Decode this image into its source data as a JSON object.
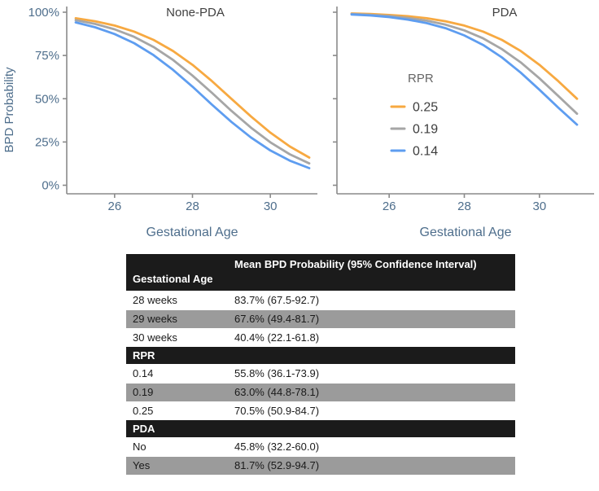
{
  "colors": {
    "series_orange": "#F7A941",
    "series_gray": "#A6A6A6",
    "series_blue": "#5E9DF0",
    "axis_line": "#8a8a8a",
    "axis_text": "#4e6e8c",
    "title_text": "#404040",
    "legend_title_text": "#666666",
    "legend_entry_text": "#3d3d3d",
    "table_header_bg": "#1b1b1b",
    "table_header_text": "#ffffff",
    "table_alt_row_bg": "#9b9b9b",
    "table_text": "#1a1a1a"
  },
  "chart_data": [
    {
      "type": "line",
      "title": "None-PDA",
      "xlabel": "Gestational Age",
      "ylabel": "BPD Probability",
      "xlim": [
        25,
        31
      ],
      "ylim": [
        0,
        100
      ],
      "x_ticks": [
        26,
        28,
        30
      ],
      "x_tick_labels": [
        "26",
        "28",
        "30"
      ],
      "y_ticks": [
        0,
        25,
        50,
        75,
        100
      ],
      "y_tick_labels": [
        "0%",
        "25%",
        "50%",
        "75%",
        "100%"
      ],
      "y_tick_labels_visible": true,
      "grid": false,
      "legend_visible": false,
      "x": [
        25,
        25.5,
        26,
        26.5,
        27,
        27.5,
        28,
        28.5,
        29,
        29.5,
        30,
        30.5,
        31
      ],
      "series": [
        {
          "name": "0.25",
          "color_key": "series_orange",
          "values": [
            96.5,
            94.8,
            92.3,
            88.8,
            84.0,
            77.6,
            69.6,
            60.2,
            50.0,
            39.8,
            30.4,
            22.4,
            16.0
          ]
        },
        {
          "name": "0.19",
          "color_key": "series_gray",
          "values": [
            95.4,
            93.2,
            90.1,
            85.8,
            79.9,
            72.4,
            63.4,
            53.4,
            43.0,
            33.3,
            24.8,
            17.9,
            12.6
          ]
        },
        {
          "name": "0.14",
          "color_key": "series_blue",
          "values": [
            94.1,
            91.3,
            87.4,
            82.1,
            75.2,
            66.7,
            57.0,
            46.6,
            36.6,
            27.6,
            20.1,
            14.2,
            9.9
          ]
        }
      ]
    },
    {
      "type": "line",
      "title": "PDA",
      "xlabel": "Gestational Age",
      "ylabel": "",
      "xlim": [
        25,
        31
      ],
      "ylim": [
        0,
        100
      ],
      "x_ticks": [
        26,
        28,
        30
      ],
      "x_tick_labels": [
        "26",
        "28",
        "30"
      ],
      "y_ticks": [
        0,
        25,
        50,
        75,
        100
      ],
      "y_tick_labels": [],
      "y_tick_labels_visible": false,
      "grid": false,
      "legend_visible": true,
      "legend": {
        "title": "RPR",
        "entries": [
          "0.25",
          "0.19",
          "0.14"
        ],
        "position": "inside-left"
      },
      "x": [
        25,
        25.5,
        26,
        26.5,
        27,
        27.5,
        28,
        28.5,
        29,
        29.5,
        30,
        30.5,
        31
      ],
      "series": [
        {
          "name": "0.25",
          "color_key": "series_orange",
          "values": [
            99.3,
            99.0,
            98.4,
            97.7,
            96.5,
            94.8,
            92.3,
            88.8,
            84.0,
            77.6,
            69.6,
            60.2,
            50.0
          ]
        },
        {
          "name": "0.19",
          "color_key": "series_gray",
          "values": [
            99.0,
            98.5,
            97.8,
            96.7,
            95.1,
            92.8,
            89.5,
            84.9,
            78.7,
            71.0,
            61.8,
            51.6,
            41.3
          ]
        },
        {
          "name": "0.14",
          "color_key": "series_blue",
          "values": [
            98.7,
            98.1,
            97.2,
            95.7,
            93.7,
            90.8,
            86.6,
            81.1,
            73.9,
            65.1,
            55.2,
            44.9,
            35.0
          ]
        }
      ]
    }
  ],
  "table": {
    "value_column_header": "Mean BPD Probability (95% Confidence Interval)",
    "sections": [
      {
        "label": "Gestational Age",
        "rows": [
          [
            "28 weeks",
            "83.7% (67.5-92.7)"
          ],
          [
            "29 weeks",
            "67.6% (49.4-81.7)"
          ],
          [
            "30 weeks",
            "40.4% (22.1-61.8)"
          ]
        ]
      },
      {
        "label": "RPR",
        "rows": [
          [
            "0.14",
            "55.8% (36.1-73.9)"
          ],
          [
            "0.19",
            "63.0% (44.8-78.1)"
          ],
          [
            "0.25",
            "70.5% (50.9-84.7)"
          ]
        ]
      },
      {
        "label": "PDA",
        "rows": [
          [
            "No",
            "45.8% (32.2-60.0)"
          ],
          [
            "Yes",
            "81.7% (52.9-94.7)"
          ]
        ]
      }
    ]
  }
}
